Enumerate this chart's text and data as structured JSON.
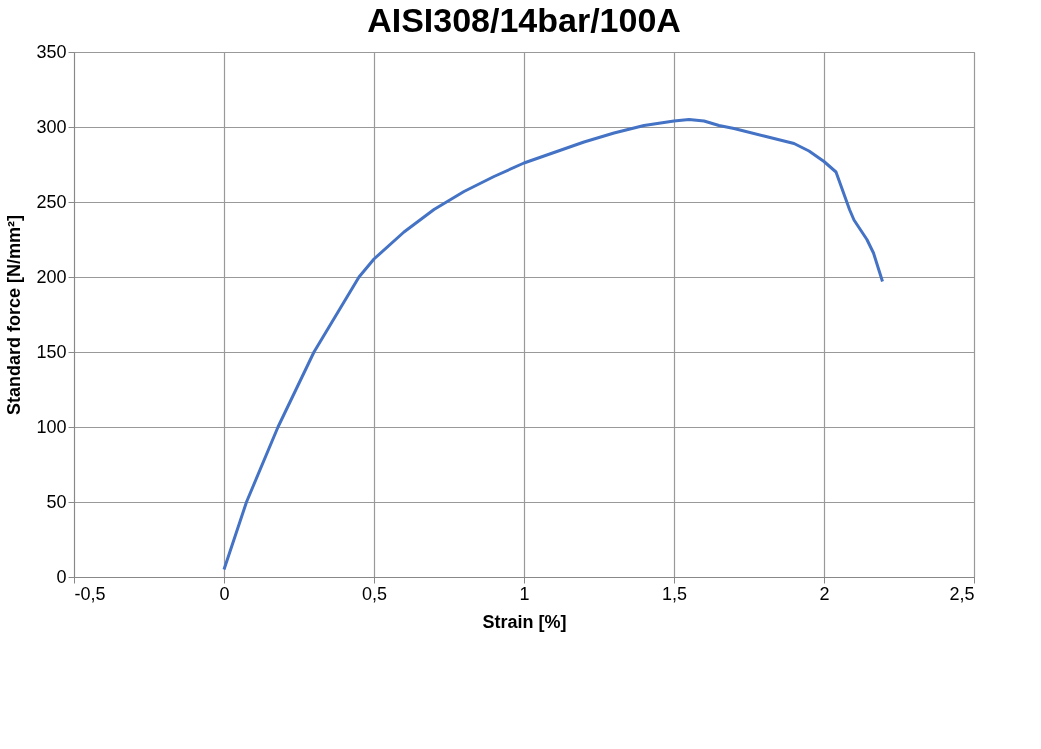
{
  "chart_data": {
    "type": "line",
    "title": "AISI308/14bar/100A",
    "xlabel": "Strain [%]",
    "ylabel": "Standard force [N/mm²]",
    "series": [
      {
        "color": "#4472c4",
        "x": [
          0,
          0.075,
          0.18,
          0.3,
          0.45,
          0.5,
          0.6,
          0.7,
          0.8,
          0.9,
          1.0,
          1.1,
          1.2,
          1.3,
          1.4,
          1.5,
          1.55,
          1.6,
          1.65,
          1.7,
          1.8,
          1.9,
          1.95,
          2.0,
          2.04,
          2.085,
          2.1,
          2.143,
          2.165,
          2.195
        ],
        "values": [
          5,
          50,
          100,
          150,
          200,
          212,
          230,
          245,
          257,
          267,
          276,
          283,
          290,
          296,
          301,
          304,
          305,
          304,
          301,
          299,
          294,
          289,
          284,
          277,
          270,
          245,
          238,
          225,
          216,
          197
        ]
      }
    ],
    "xlim": [
      -0.5,
      2.5
    ],
    "xticks": [
      {
        "value": -0.5,
        "label": "-0,5"
      },
      0,
      {
        "value": 0.5,
        "label": "0,5"
      },
      1,
      {
        "value": 1.5,
        "label": "1,5"
      },
      2,
      {
        "value": 2.5,
        "label": "2,5"
      }
    ],
    "ylim": [
      0,
      350
    ],
    "yticks": [
      0,
      50,
      100,
      150,
      200,
      250,
      300,
      350
    ],
    "grid": true,
    "line_style": "solid",
    "marker": "none",
    "legend": false
  }
}
